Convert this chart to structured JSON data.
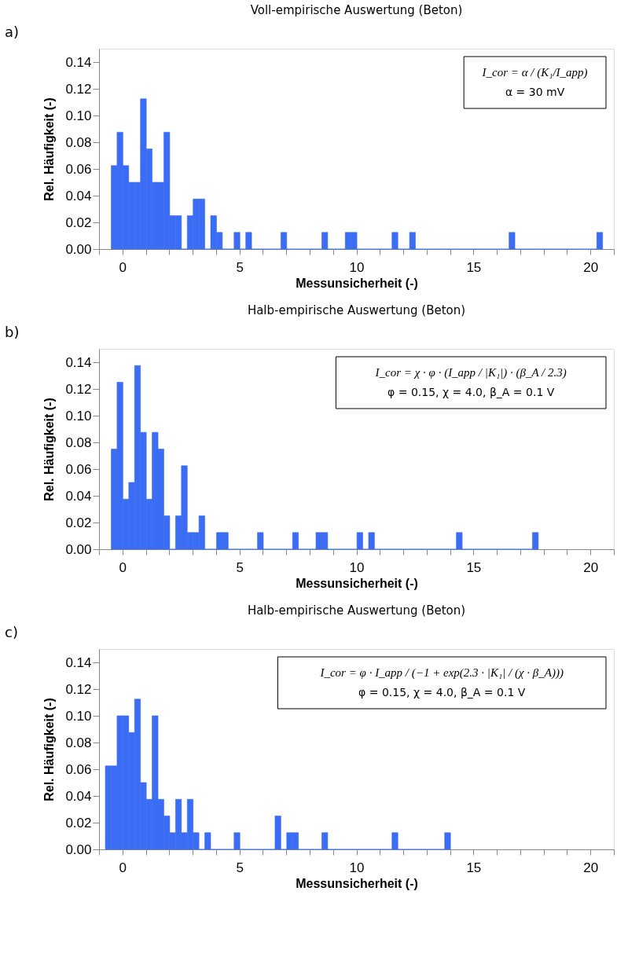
{
  "chart_data": [
    {
      "type": "histogram",
      "title": "Voll-empirische Auswertung (Beton)",
      "xlabel": "Messunsicherheit (-)",
      "ylabel": "Rel. Häufigkeit (-)",
      "color": "#3a6cf4",
      "bins": [
        -0.48,
        -0.23,
        0.02,
        0.27,
        0.52,
        0.77,
        1.02,
        1.27,
        1.52,
        1.77,
        2.02,
        2.27,
        2.52,
        2.77,
        3.02,
        3.27,
        3.52,
        3.77,
        4.02,
        4.27,
        4.52,
        4.77,
        5.02,
        5.27,
        5.52,
        5.77,
        6.02,
        6.27,
        6.52,
        6.77,
        7.02,
        7.27,
        7.52,
        7.77,
        8.02,
        8.27,
        8.52,
        8.77,
        9.02,
        9.27,
        9.52,
        9.77,
        10.02,
        10.27,
        10.52,
        10.77,
        11.02,
        11.27,
        11.52,
        11.77,
        12.02,
        12.27,
        12.52,
        12.77,
        13.02,
        13.27,
        13.52,
        13.77,
        14.02,
        14.27,
        14.52,
        14.77,
        15.02,
        15.27,
        15.52,
        15.77,
        16.02,
        16.27,
        16.52,
        16.77,
        17.02,
        17.27,
        17.52,
        17.77,
        18.02,
        18.27,
        18.52,
        18.77,
        19.02,
        19.27,
        19.52,
        19.77,
        20.02,
        20.27,
        20.52
      ],
      "values": [
        0.0625,
        0.0875,
        0.0625,
        0.05,
        0.05,
        0.1125,
        0.075,
        0.05,
        0.05,
        0.0875,
        0.025,
        0.025,
        0,
        0.025,
        0.0375,
        0.0375,
        0,
        0.025,
        0.0125,
        0,
        0,
        0.0125,
        0,
        0.0125,
        0,
        0,
        0,
        0,
        0,
        0.0125,
        0,
        0,
        0,
        0,
        0,
        0,
        0.0125,
        0,
        0,
        0,
        0.0125,
        0.0125,
        0,
        0,
        0,
        0,
        0,
        0,
        0.0125,
        0,
        0,
        0.0125,
        0,
        0,
        0,
        0,
        0,
        0,
        0,
        0,
        0,
        0,
        0,
        0,
        0,
        0,
        0,
        0,
        0.0125,
        0,
        0,
        0,
        0,
        0,
        0,
        0,
        0,
        0,
        0,
        0,
        0,
        0,
        0,
        0.0125
      ],
      "xlim": [
        -1,
        21
      ],
      "ylim": [
        0,
        0.15
      ],
      "xticks": [
        {
          "value": -1,
          "label": null
        },
        0,
        {
          "value": 1,
          "label": null
        },
        {
          "value": 2,
          "label": null
        },
        {
          "value": 3,
          "label": null
        },
        {
          "value": 4,
          "label": null
        },
        5,
        {
          "value": 6,
          "label": null
        },
        {
          "value": 7,
          "label": null
        },
        {
          "value": 8,
          "label": null
        },
        {
          "value": 9,
          "label": null
        },
        10,
        {
          "value": 11,
          "label": null
        },
        {
          "value": 12,
          "label": null
        },
        {
          "value": 13,
          "label": null
        },
        {
          "value": 14,
          "label": null
        },
        15,
        {
          "value": 16,
          "label": null
        },
        {
          "value": 17,
          "label": null
        },
        {
          "value": 18,
          "label": null
        },
        {
          "value": 19,
          "label": null
        },
        20,
        {
          "value": 21,
          "label": null
        }
      ],
      "yticks": [
        {
          "value": 0,
          "label": "0.00"
        },
        {
          "value": 0.02,
          "label": "0.02"
        },
        {
          "value": 0.04,
          "label": "0.04"
        },
        {
          "value": 0.06,
          "label": "0.06"
        },
        {
          "value": 0.08,
          "label": "0.08"
        },
        {
          "value": 0.1,
          "label": "0.10"
        },
        {
          "value": 0.12,
          "label": "0.12"
        },
        {
          "value": 0.14,
          "label": "0.14"
        }
      ],
      "annotations": [
        "a)",
        "I_cor = α / (K₁/I_app)",
        "α = 30 mV"
      ]
    },
    {
      "type": "histogram",
      "title": "Halb-empirische Auswertung (Beton)",
      "xlabel": "Messunsicherheit (-)",
      "ylabel": "Rel. Häufigkeit (-)",
      "color": "#3a6cf4",
      "bins": [
        -0.48,
        -0.23,
        0.02,
        0.27,
        0.52,
        0.77,
        1.02,
        1.27,
        1.52,
        1.77,
        2.02,
        2.27,
        2.52,
        2.77,
        3.02,
        3.27,
        3.52,
        3.77,
        4.02,
        4.27,
        4.52,
        4.77,
        5.02,
        5.27,
        5.52,
        5.77,
        6.02,
        6.27,
        6.52,
        6.77,
        7.02,
        7.27,
        7.52,
        7.77,
        8.02,
        8.27,
        8.52,
        8.77,
        9.02,
        9.27,
        9.52,
        9.77,
        10.02,
        10.27,
        10.52,
        10.77,
        11.02,
        11.27,
        11.52,
        11.77,
        12.02,
        12.27,
        12.52,
        12.77,
        13.02,
        13.27,
        13.52,
        13.77,
        14.02,
        14.27,
        14.52,
        14.77,
        15.02,
        15.27,
        15.52,
        15.77,
        16.02,
        16.27,
        16.52,
        16.77,
        17.02,
        17.27,
        17.52,
        17.77
      ],
      "values": [
        0.075,
        0.125,
        0.0375,
        0.05,
        0.1375,
        0.0875,
        0.0375,
        0.0875,
        0.075,
        0.025,
        0,
        0.025,
        0.0625,
        0.0125,
        0.0125,
        0.025,
        0,
        0,
        0.0125,
        0.0125,
        0,
        0,
        0,
        0,
        0,
        0.0125,
        0,
        0,
        0,
        0,
        0,
        0.0125,
        0,
        0,
        0,
        0.0125,
        0.0125,
        0,
        0,
        0,
        0,
        0,
        0.0125,
        0,
        0.0125,
        0,
        0,
        0,
        0,
        0,
        0,
        0,
        0,
        0,
        0,
        0,
        0,
        0,
        0,
        0.0125,
        0,
        0,
        0,
        0,
        0,
        0,
        0,
        0,
        0,
        0,
        0,
        0,
        0.0125
      ],
      "xlim": [
        -1,
        21
      ],
      "ylim": [
        0,
        0.15
      ],
      "xticks": [
        {
          "value": -1,
          "label": null
        },
        0,
        {
          "value": 1,
          "label": null
        },
        {
          "value": 2,
          "label": null
        },
        {
          "value": 3,
          "label": null
        },
        {
          "value": 4,
          "label": null
        },
        5,
        {
          "value": 6,
          "label": null
        },
        {
          "value": 7,
          "label": null
        },
        {
          "value": 8,
          "label": null
        },
        {
          "value": 9,
          "label": null
        },
        10,
        {
          "value": 11,
          "label": null
        },
        {
          "value": 12,
          "label": null
        },
        {
          "value": 13,
          "label": null
        },
        {
          "value": 14,
          "label": null
        },
        15,
        {
          "value": 16,
          "label": null
        },
        {
          "value": 17,
          "label": null
        },
        {
          "value": 18,
          "label": null
        },
        {
          "value": 19,
          "label": null
        },
        20,
        {
          "value": 21,
          "label": null
        }
      ],
      "yticks": [
        {
          "value": 0,
          "label": "0.00"
        },
        {
          "value": 0.02,
          "label": "0.02"
        },
        {
          "value": 0.04,
          "label": "0.04"
        },
        {
          "value": 0.06,
          "label": "0.06"
        },
        {
          "value": 0.08,
          "label": "0.08"
        },
        {
          "value": 0.1,
          "label": "0.10"
        },
        {
          "value": 0.12,
          "label": "0.12"
        },
        {
          "value": 0.14,
          "label": "0.14"
        }
      ],
      "annotations": [
        "b)",
        "I_cor = χ · φ · (I_app / |K₁|) · (β_A / 2.3)",
        "φ = 0.15, χ = 4.0, β_A = 0.1 V"
      ]
    },
    {
      "type": "histogram",
      "title": "Halb-empirische Auswertung (Beton)",
      "xlabel": "Messunsicherheit (-)",
      "ylabel": "Rel. Häufigkeit (-)",
      "color": "#3a6cf4",
      "bins": [
        -0.73,
        -0.48,
        -0.23,
        0.02,
        0.27,
        0.52,
        0.77,
        1.02,
        1.27,
        1.52,
        1.77,
        2.02,
        2.27,
        2.52,
        2.77,
        3.02,
        3.27,
        3.52,
        3.77,
        4.02,
        4.27,
        4.52,
        4.77,
        5.02,
        5.27,
        5.52,
        5.77,
        6.02,
        6.27,
        6.52,
        6.77,
        7.02,
        7.27,
        7.52,
        7.77,
        8.02,
        8.27,
        8.52,
        8.77,
        9.02,
        9.27,
        9.52,
        9.77,
        10.02,
        10.27,
        10.52,
        10.77,
        11.02,
        11.27,
        11.52,
        11.77,
        12.02,
        12.27,
        12.52,
        12.77,
        13.02,
        13.27,
        13.52,
        13.77,
        14.02
      ],
      "values": [
        0.0625,
        0.0625,
        0.1,
        0.1,
        0.0875,
        0.1125,
        0.05,
        0.0375,
        0.1,
        0.0375,
        0.025,
        0.0125,
        0.0375,
        0.0125,
        0.0375,
        0.0125,
        0,
        0.0125,
        0,
        0,
        0,
        0,
        0.0125,
        0,
        0,
        0,
        0,
        0,
        0,
        0.025,
        0,
        0.0125,
        0.0125,
        0,
        0,
        0,
        0,
        0.0125,
        0,
        0,
        0,
        0,
        0,
        0,
        0,
        0,
        0,
        0,
        0,
        0.0125,
        0,
        0,
        0,
        0,
        0,
        0,
        0,
        0,
        0.0125
      ],
      "xlim": [
        -1,
        21
      ],
      "ylim": [
        0,
        0.15
      ],
      "xticks": [
        {
          "value": -1,
          "label": null
        },
        0,
        {
          "value": 1,
          "label": null
        },
        {
          "value": 2,
          "label": null
        },
        {
          "value": 3,
          "label": null
        },
        {
          "value": 4,
          "label": null
        },
        5,
        {
          "value": 6,
          "label": null
        },
        {
          "value": 7,
          "label": null
        },
        {
          "value": 8,
          "label": null
        },
        {
          "value": 9,
          "label": null
        },
        10,
        {
          "value": 11,
          "label": null
        },
        {
          "value": 12,
          "label": null
        },
        {
          "value": 13,
          "label": null
        },
        {
          "value": 14,
          "label": null
        },
        15,
        {
          "value": 16,
          "label": null
        },
        {
          "value": 17,
          "label": null
        },
        {
          "value": 18,
          "label": null
        },
        {
          "value": 19,
          "label": null
        },
        20,
        {
          "value": 21,
          "label": null
        }
      ],
      "yticks": [
        {
          "value": 0,
          "label": "0.00"
        },
        {
          "value": 0.02,
          "label": "0.02"
        },
        {
          "value": 0.04,
          "label": "0.04"
        },
        {
          "value": 0.06,
          "label": "0.06"
        },
        {
          "value": 0.08,
          "label": "0.08"
        },
        {
          "value": 0.1,
          "label": "0.10"
        },
        {
          "value": 0.12,
          "label": "0.12"
        },
        {
          "value": 0.14,
          "label": "0.14"
        }
      ],
      "annotations": [
        "c)",
        "I_cor = φ · I_app / (−1 + exp(2.3 · |K₁| / (χ · β_A)))",
        "φ = 0.15, χ = 4.0, β_A = 0.1 V"
      ]
    }
  ]
}
